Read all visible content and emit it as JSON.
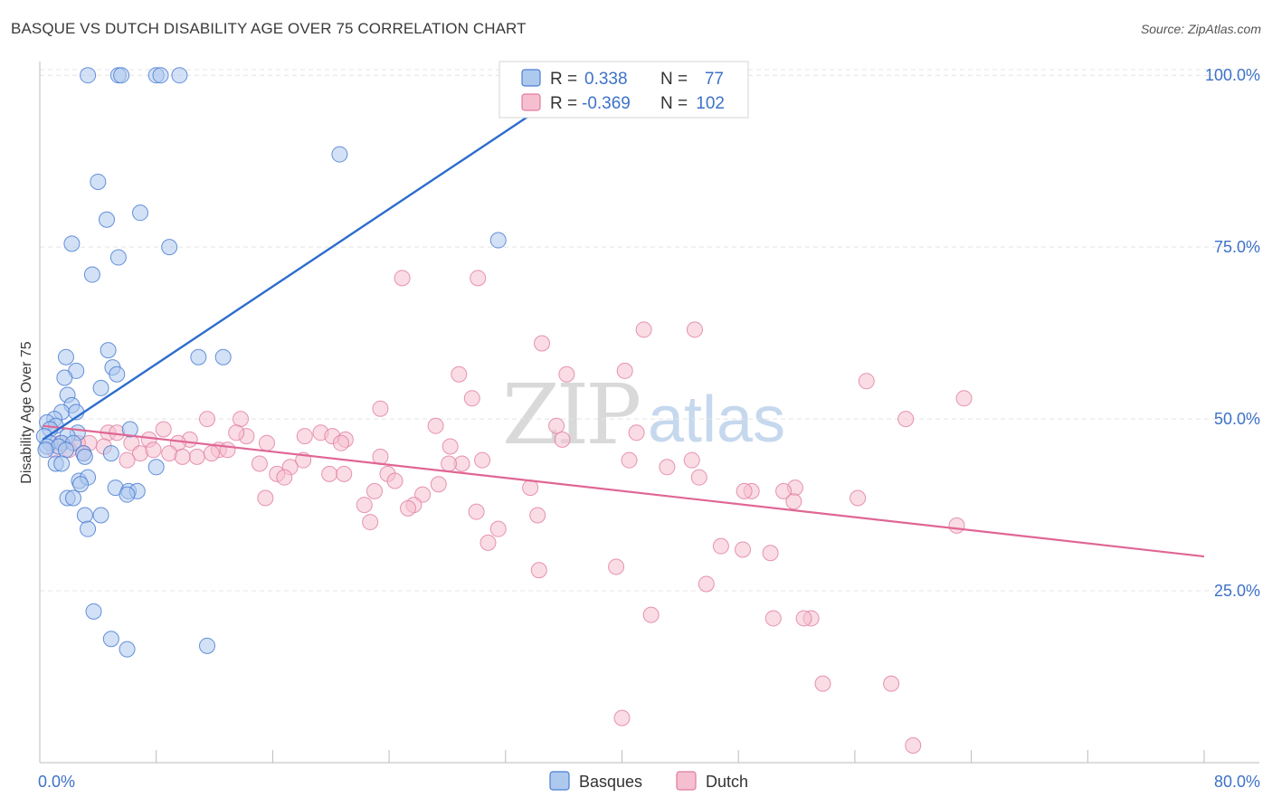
{
  "header": {
    "title": "BASQUE VS DUTCH DISABILITY AGE OVER 75 CORRELATION CHART",
    "source": "Source: ZipAtlas.com"
  },
  "watermark": {
    "zip": "ZIP",
    "atlas": "atlas"
  },
  "legend_box": {
    "row1": {
      "r_label": "R =",
      "r_value": "0.338",
      "n_label": "N =",
      "n_value": "77"
    },
    "row2": {
      "r_label": "R =",
      "r_value": "-0.369",
      "n_label": "N =",
      "n_value": "102"
    }
  },
  "colors": {
    "basque_fill": "#aec9ee",
    "basque_stroke": "#4a7fd4",
    "basque_line": "#2c6dcc",
    "dutch_fill": "#f6bfd0",
    "dutch_stroke": "#e07ca0",
    "dutch_line": "#e06694",
    "axis_label_blue": "#3d72c8",
    "grid": "#e4e4e4"
  },
  "chart_data": {
    "type": "scatter",
    "title": "BASQUE VS DUTCH DISABILITY AGE OVER 75 CORRELATION CHART",
    "xlabel": "",
    "ylabel": "Disability Age Over 75",
    "xlim": [
      0,
      80
    ],
    "ylim": [
      0,
      102
    ],
    "x_tick_labels": [
      "0.0%",
      "80.0%"
    ],
    "y_tick_labels": [
      "25.0%",
      "50.0%",
      "75.0%",
      "100.0%"
    ],
    "y_ticks": [
      25,
      50,
      75,
      100
    ],
    "grid": true,
    "legend": {
      "position": "bottom-center",
      "entries": [
        "Basques",
        "Dutch"
      ]
    },
    "series": [
      {
        "name": "Basques",
        "R": 0.338,
        "N": 77,
        "trend": [
          [
            0.2,
            47.0
          ],
          [
            37.8,
            100.0
          ]
        ],
        "points": [
          [
            3.3,
            100.0
          ],
          [
            5.4,
            100.0
          ],
          [
            5.6,
            100.0
          ],
          [
            8.0,
            100.0
          ],
          [
            8.3,
            100.0
          ],
          [
            9.6,
            100.0
          ],
          [
            20.6,
            88.5
          ],
          [
            4.0,
            84.5
          ],
          [
            4.6,
            79.0
          ],
          [
            6.9,
            80.0
          ],
          [
            2.2,
            75.5
          ],
          [
            8.9,
            75.0
          ],
          [
            5.4,
            73.5
          ],
          [
            3.6,
            71.0
          ],
          [
            31.5,
            76.0
          ],
          [
            4.7,
            60.0
          ],
          [
            1.8,
            59.0
          ],
          [
            10.9,
            59.0
          ],
          [
            12.6,
            59.0
          ],
          [
            2.5,
            57.0
          ],
          [
            5.0,
            57.5
          ],
          [
            5.3,
            56.5
          ],
          [
            1.7,
            56.0
          ],
          [
            4.2,
            54.5
          ],
          [
            1.9,
            53.5
          ],
          [
            2.2,
            52.0
          ],
          [
            1.5,
            51.0
          ],
          [
            2.5,
            51.0
          ],
          [
            1.0,
            50.0
          ],
          [
            0.5,
            49.5
          ],
          [
            1.1,
            49.0
          ],
          [
            0.7,
            48.5
          ],
          [
            2.6,
            48.0
          ],
          [
            6.2,
            48.5
          ],
          [
            1.9,
            47.5
          ],
          [
            0.3,
            47.5
          ],
          [
            0.7,
            46.5
          ],
          [
            1.5,
            46.5
          ],
          [
            2.3,
            46.5
          ],
          [
            0.5,
            46.0
          ],
          [
            1.3,
            46.0
          ],
          [
            0.4,
            45.5
          ],
          [
            1.8,
            45.5
          ],
          [
            3.0,
            45.0
          ],
          [
            4.9,
            45.0
          ],
          [
            3.1,
            44.5
          ],
          [
            1.1,
            43.5
          ],
          [
            1.5,
            43.5
          ],
          [
            8.0,
            43.0
          ],
          [
            2.7,
            41.0
          ],
          [
            3.3,
            41.5
          ],
          [
            2.8,
            40.5
          ],
          [
            5.2,
            40.0
          ],
          [
            6.1,
            39.5
          ],
          [
            6.7,
            39.5
          ],
          [
            6.0,
            39.0
          ],
          [
            1.9,
            38.5
          ],
          [
            2.3,
            38.5
          ],
          [
            3.1,
            36.0
          ],
          [
            4.2,
            36.0
          ],
          [
            3.3,
            34.0
          ],
          [
            3.7,
            22.0
          ],
          [
            4.9,
            18.0
          ],
          [
            6.0,
            16.5
          ],
          [
            11.5,
            17.0
          ]
        ]
      },
      {
        "name": "Dutch",
        "R": -0.369,
        "N": 102,
        "trend": [
          [
            0.2,
            49.0
          ],
          [
            80.0,
            30.0
          ]
        ],
        "points": [
          [
            24.9,
            70.5
          ],
          [
            30.1,
            70.5
          ],
          [
            41.5,
            63.0
          ],
          [
            45.0,
            63.0
          ],
          [
            34.5,
            61.0
          ],
          [
            56.8,
            55.5
          ],
          [
            28.8,
            56.5
          ],
          [
            36.2,
            56.5
          ],
          [
            40.2,
            57.0
          ],
          [
            63.5,
            53.0
          ],
          [
            29.7,
            53.0
          ],
          [
            23.4,
            51.5
          ],
          [
            11.5,
            50.0
          ],
          [
            13.8,
            50.0
          ],
          [
            59.5,
            50.0
          ],
          [
            27.2,
            49.0
          ],
          [
            35.5,
            49.0
          ],
          [
            8.5,
            48.5
          ],
          [
            14.2,
            47.5
          ],
          [
            13.5,
            48.0
          ],
          [
            19.3,
            48.0
          ],
          [
            4.7,
            48.0
          ],
          [
            5.3,
            48.0
          ],
          [
            41.0,
            48.0
          ],
          [
            20.1,
            47.5
          ],
          [
            18.2,
            47.5
          ],
          [
            21.0,
            47.0
          ],
          [
            35.9,
            47.0
          ],
          [
            7.5,
            47.0
          ],
          [
            10.3,
            47.0
          ],
          [
            9.5,
            46.5
          ],
          [
            6.3,
            46.5
          ],
          [
            3.4,
            46.5
          ],
          [
            2.6,
            46.5
          ],
          [
            15.6,
            46.5
          ],
          [
            1.4,
            46.5
          ],
          [
            20.7,
            46.5
          ],
          [
            1.0,
            45.5
          ],
          [
            2.0,
            45.5
          ],
          [
            4.4,
            46.0
          ],
          [
            6.9,
            45.0
          ],
          [
            7.8,
            45.5
          ],
          [
            12.3,
            45.5
          ],
          [
            28.2,
            46.0
          ],
          [
            11.8,
            45.0
          ],
          [
            12.9,
            45.5
          ],
          [
            8.9,
            45.0
          ],
          [
            10.8,
            44.5
          ],
          [
            9.8,
            44.5
          ],
          [
            3.0,
            45.0
          ],
          [
            6.0,
            44.0
          ],
          [
            18.1,
            44.0
          ],
          [
            23.4,
            44.5
          ],
          [
            29.0,
            43.5
          ],
          [
            40.5,
            44.0
          ],
          [
            44.8,
            44.0
          ],
          [
            15.1,
            43.5
          ],
          [
            17.2,
            43.0
          ],
          [
            28.1,
            43.5
          ],
          [
            30.4,
            44.0
          ],
          [
            43.1,
            43.0
          ],
          [
            16.3,
            42.0
          ],
          [
            19.9,
            42.0
          ],
          [
            23.9,
            42.0
          ],
          [
            16.8,
            41.5
          ],
          [
            20.9,
            42.0
          ],
          [
            24.4,
            41.0
          ],
          [
            27.4,
            40.5
          ],
          [
            45.3,
            41.5
          ],
          [
            33.7,
            40.0
          ],
          [
            51.9,
            40.0
          ],
          [
            48.9,
            39.5
          ],
          [
            48.4,
            39.5
          ],
          [
            51.1,
            39.5
          ],
          [
            23.0,
            39.5
          ],
          [
            26.3,
            39.0
          ],
          [
            15.5,
            38.5
          ],
          [
            56.2,
            38.5
          ],
          [
            51.8,
            38.0
          ],
          [
            25.7,
            37.5
          ],
          [
            22.3,
            37.5
          ],
          [
            30.0,
            36.5
          ],
          [
            25.3,
            37.0
          ],
          [
            34.2,
            36.0
          ],
          [
            22.7,
            35.0
          ],
          [
            31.5,
            34.0
          ],
          [
            63.0,
            34.5
          ],
          [
            30.8,
            32.0
          ],
          [
            46.8,
            31.5
          ],
          [
            48.3,
            31.0
          ],
          [
            50.2,
            30.5
          ],
          [
            34.3,
            28.0
          ],
          [
            39.6,
            28.5
          ],
          [
            45.8,
            26.0
          ],
          [
            42.0,
            21.5
          ],
          [
            50.4,
            21.0
          ],
          [
            53.0,
            21.0
          ],
          [
            52.5,
            21.0
          ],
          [
            53.8,
            11.5
          ],
          [
            58.5,
            11.5
          ],
          [
            40.0,
            6.5
          ],
          [
            60.0,
            2.5
          ]
        ]
      }
    ]
  }
}
